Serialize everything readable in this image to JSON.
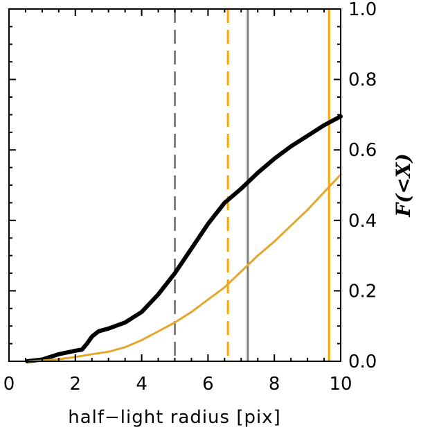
{
  "chart_data": {
    "type": "line",
    "title": "",
    "xlabel": "half−light radius [pix]",
    "ylabel": "F(<X)",
    "xlim": [
      0,
      10
    ],
    "ylim": [
      0,
      1.0
    ],
    "x_ticks": [
      0,
      2,
      4,
      6,
      8,
      10
    ],
    "x_tick_labels": [
      "0",
      "2",
      "4",
      "6",
      "8",
      "10"
    ],
    "y_ticks": [
      0.0,
      0.2,
      0.4,
      0.6,
      0.8,
      1.0
    ],
    "y_tick_labels": [
      "0.0",
      "0.2",
      "0.4",
      "0.6",
      "0.8",
      "1.0"
    ],
    "y_axis_side": "right",
    "grid": false,
    "legend": "none",
    "series": [
      {
        "color": "#000000",
        "style": "solid-thick",
        "x": [
          0.55,
          1.0,
          1.5,
          2.0,
          2.2,
          2.35,
          2.5,
          2.7,
          3.0,
          3.5,
          4.0,
          4.5,
          5.0,
          5.5,
          6.0,
          6.5,
          7.0,
          7.5,
          8.0,
          8.5,
          9.0,
          9.5,
          10.0
        ],
        "values": [
          0.0,
          0.005,
          0.02,
          0.03,
          0.033,
          0.05,
          0.07,
          0.085,
          0.093,
          0.11,
          0.14,
          0.19,
          0.25,
          0.32,
          0.39,
          0.45,
          0.49,
          0.535,
          0.575,
          0.61,
          0.64,
          0.67,
          0.695
        ]
      },
      {
        "color": "#E2A72B",
        "style": "solid",
        "x": [
          0.6,
          1.0,
          1.5,
          2.0,
          2.5,
          3.0,
          3.5,
          4.0,
          4.5,
          5.0,
          5.5,
          6.0,
          6.5,
          7.0,
          7.5,
          8.0,
          8.5,
          9.0,
          9.5,
          10.0
        ],
        "values": [
          0.0,
          0.002,
          0.006,
          0.012,
          0.02,
          0.027,
          0.04,
          0.06,
          0.085,
          0.11,
          0.14,
          0.175,
          0.21,
          0.255,
          0.3,
          0.34,
          0.385,
          0.43,
          0.48,
          0.53
        ]
      }
    ],
    "vertical_lines": [
      {
        "x": 5.0,
        "color": "#808080",
        "style": "dashed"
      },
      {
        "x": 7.2,
        "color": "#808080",
        "style": "solid"
      },
      {
        "x": 6.6,
        "color": "#FFA500",
        "style": "dashed"
      },
      {
        "x": 9.65,
        "color": "#FFA500",
        "style": "solid"
      }
    ]
  }
}
